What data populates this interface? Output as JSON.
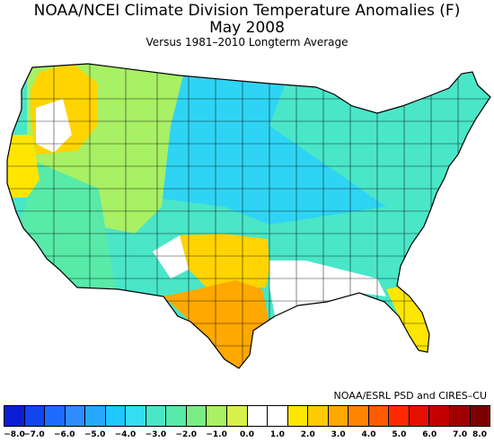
{
  "title": "NOAA/NCEI Climate Division Temperature Anomalies (F)",
  "subtitle": "May 2008",
  "caption": "Versus 1981–2010 Longterm Average",
  "credit": "NOAA/ESRL PSD and CIRES–CU",
  "legend": {
    "ticks": [
      "−8.0",
      "−7.0",
      "−6.0",
      "−5.0",
      "−4.0",
      "−3.0",
      "−2.0",
      "−1.0",
      "0.0",
      "1.0",
      "2.0",
      "3.0",
      "4.0",
      "5.0",
      "6.0",
      "7.0",
      "8.0"
    ],
    "colors": [
      "#0a1ed6",
      "#1244f0",
      "#1e6cff",
      "#2f8cff",
      "#29a8ff",
      "#1ec8ff",
      "#36dcf0",
      "#4ae6c8",
      "#58eaa8",
      "#7cec86",
      "#a8f064",
      "#d8f04a",
      "#ffffff",
      "#ffffff",
      "#ffe600",
      "#ffca00",
      "#ffa800",
      "#ff8400",
      "#ff5a00",
      "#ff2a00",
      "#e61000",
      "#c40000",
      "#a00000",
      "#7c0000"
    ]
  },
  "map": {
    "regions": [
      {
        "name": "Pacific Northwest coast",
        "color": "#ffd400"
      },
      {
        "name": "West",
        "color": "#a8f064"
      },
      {
        "name": "Southwest",
        "color": "#58eaa8"
      },
      {
        "name": "North Central",
        "color": "#2fd4f4"
      },
      {
        "name": "Midwest and East",
        "color": "#4ae6c8"
      },
      {
        "name": "Texas interior",
        "color": "#ffa800"
      },
      {
        "name": "Oklahoma and Arkansas",
        "color": "#ffd400"
      },
      {
        "name": "Florida",
        "color": "#ffe600"
      },
      {
        "name": "Near-normal areas",
        "color": "#ffffff"
      }
    ]
  }
}
